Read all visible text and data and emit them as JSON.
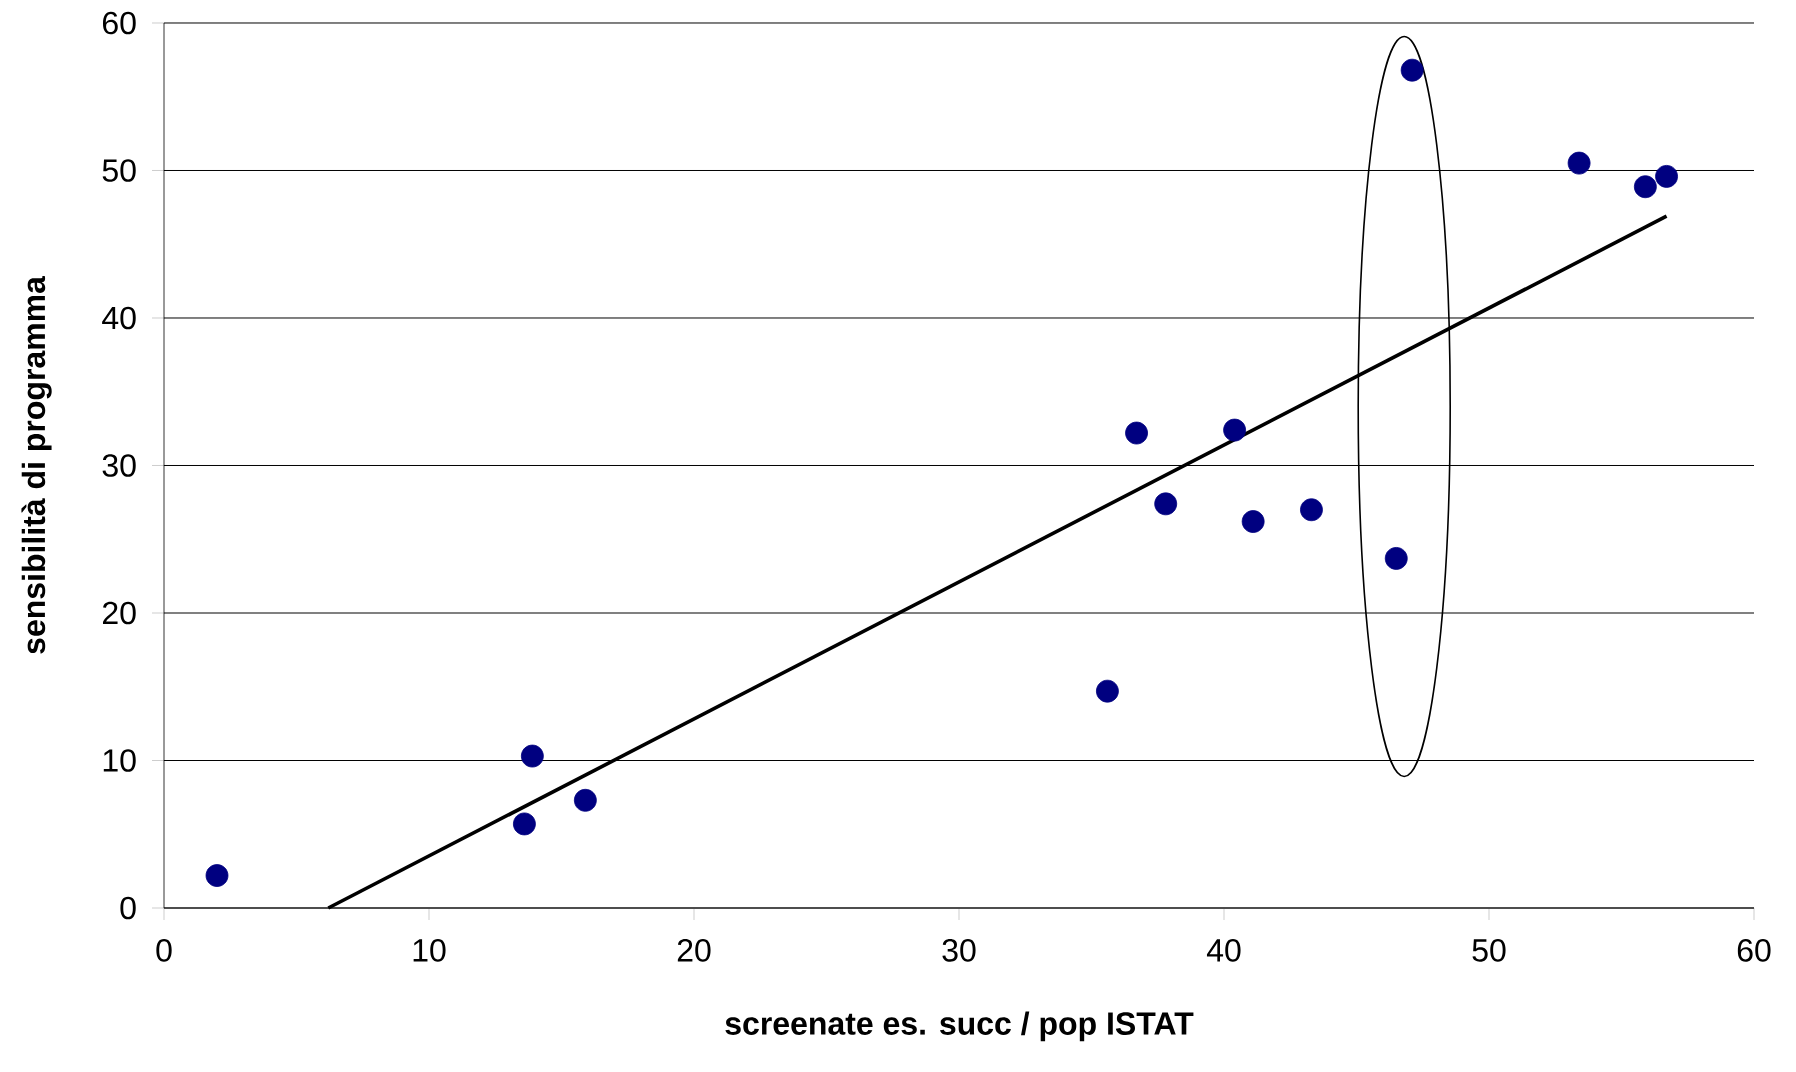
{
  "chart_data": {
    "type": "scatter",
    "xlabel": "screenate es. succ / pop ISTAT",
    "ylabel": "sensibilità di programma",
    "xlim": [
      0,
      60
    ],
    "ylim": [
      0,
      60
    ],
    "xticks": [
      0,
      10,
      20,
      30,
      40,
      50,
      60
    ],
    "yticks": [
      0,
      10,
      20,
      30,
      40,
      50,
      60
    ],
    "grid": "y",
    "marker": "circle",
    "series": [
      {
        "color": "#000080",
        "x": [
          2.0,
          13.9,
          13.6,
          15.9,
          35.6,
          36.7,
          37.8,
          40.4,
          41.1,
          43.3,
          46.5,
          47.1,
          53.4,
          55.9,
          56.7
        ],
        "values": [
          2.2,
          10.3,
          5.7,
          7.3,
          14.7,
          32.2,
          27.4,
          32.4,
          26.2,
          27.0,
          23.7,
          56.8,
          50.5,
          48.9,
          49.6
        ]
      },
      {
        "type": "line",
        "color": "#000000",
        "marker": "none",
        "x": [
          6.2,
          56.7
        ],
        "values": [
          0,
          46.9
        ]
      }
    ]
  }
}
